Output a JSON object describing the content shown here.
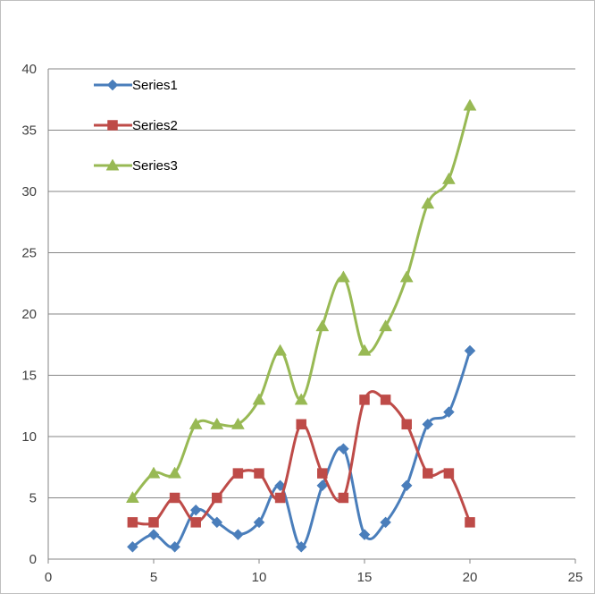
{
  "chart_data": {
    "type": "scatter",
    "title": "",
    "xlabel": "",
    "ylabel": "",
    "xlim": [
      0,
      25
    ],
    "ylim": [
      0,
      40
    ],
    "x_ticks": [
      0,
      5,
      10,
      15,
      20,
      25
    ],
    "y_ticks": [
      0,
      5,
      10,
      15,
      20,
      25,
      30,
      35,
      40
    ],
    "grid": "horizontal",
    "legend_position": "top-left",
    "x": [
      4,
      5,
      6,
      7,
      8,
      9,
      10,
      11,
      12,
      13,
      14,
      15,
      16,
      17,
      18,
      19,
      20
    ],
    "series": [
      {
        "name": "Series1",
        "color": "#4a7ebb",
        "marker": "diamond",
        "values": [
          1,
          2,
          1,
          4,
          3,
          2,
          3,
          6,
          1,
          6,
          9,
          2,
          3,
          6,
          11,
          12,
          17
        ]
      },
      {
        "name": "Series2",
        "color": "#be4b48",
        "marker": "square",
        "values": [
          3,
          3,
          5,
          3,
          5,
          7,
          7,
          5,
          11,
          7,
          5,
          13,
          13,
          11,
          7,
          7,
          3
        ]
      },
      {
        "name": "Series3",
        "color": "#98b954",
        "marker": "triangle",
        "values": [
          5,
          7,
          7,
          11,
          11,
          11,
          13,
          17,
          13,
          19,
          23,
          17,
          19,
          23,
          29,
          31,
          37
        ]
      }
    ]
  }
}
